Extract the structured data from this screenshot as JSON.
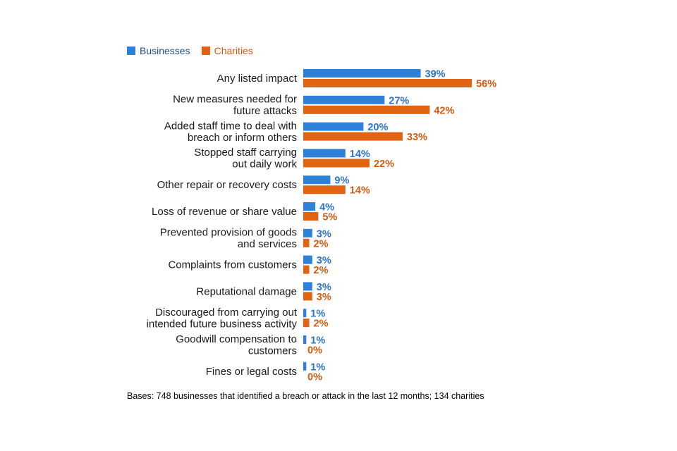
{
  "legend": {
    "businesses": "Businesses",
    "charities": "Charities"
  },
  "colors": {
    "businesses": "#2f80d9",
    "charities": "#e06412",
    "businesses_text": "#2b74c9",
    "charities_text": "#d35a10"
  },
  "footnote": "Bases: 748 businesses that identified a breach or attack in the last 12 months; 134 charities",
  "chart_data": {
    "type": "bar",
    "orientation": "horizontal",
    "title": "",
    "xlabel": "",
    "ylabel": "",
    "xlim": [
      0,
      60
    ],
    "grid": false,
    "legend_position": "top-left",
    "categories": [
      [
        "Any listed impact"
      ],
      [
        "New measures needed for",
        "future attacks"
      ],
      [
        "Added staff time to deal with",
        "breach or inform others"
      ],
      [
        "Stopped staff carrying",
        "out daily work"
      ],
      [
        "Other repair or recovery costs"
      ],
      [
        "Loss of revenue or share value"
      ],
      [
        "Prevented provision of goods",
        "and services"
      ],
      [
        "Complaints from customers"
      ],
      [
        "Reputational damage"
      ],
      [
        "Discouraged from carrying out",
        "intended future business activity"
      ],
      [
        "Goodwill compensation to",
        "customers"
      ],
      [
        "Fines or legal costs"
      ]
    ],
    "series": [
      {
        "name": "Businesses",
        "values": [
          39,
          27,
          20,
          14,
          9,
          4,
          3,
          3,
          3,
          1,
          1,
          1
        ],
        "labels": [
          "39%",
          "27%",
          "20%",
          "14%",
          "9%",
          "4%",
          "3%",
          "3%",
          "3%",
          "1%",
          "1%",
          "1%"
        ]
      },
      {
        "name": "Charities",
        "values": [
          56,
          42,
          33,
          22,
          14,
          5,
          2,
          2,
          3,
          2,
          0,
          0
        ],
        "labels": [
          "56%",
          "42%",
          "33%",
          "22%",
          "14%",
          "5%",
          "2%",
          "2%",
          "3%",
          "2%",
          "0%",
          "0%"
        ]
      }
    ]
  }
}
